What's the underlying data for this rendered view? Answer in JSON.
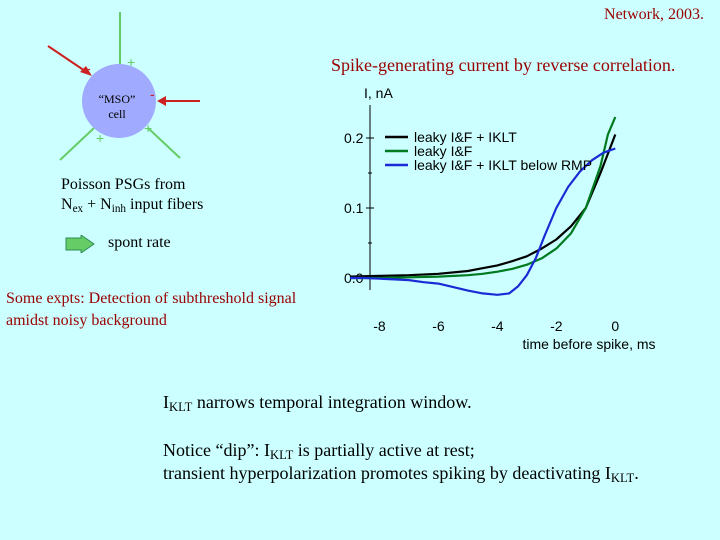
{
  "header": {
    "reference": "Network, 2003.",
    "title": "Spike-generating current by reverse correlation."
  },
  "neuron": {
    "label_line1": "“MSO”",
    "label_line2": "cell",
    "plus_marks": [
      "+",
      "+",
      "+"
    ],
    "minus_marks": [
      "-",
      "-"
    ],
    "colors": {
      "cell": "#a0aaff",
      "excitatory": "#66cc66",
      "inhibitory": "#cc2222"
    }
  },
  "left_text": {
    "poisson_line1": "Poisson PSGs from",
    "nex_main": "N",
    "nex_sub": "ex",
    "plus": " + ",
    "ninh_main": "N",
    "ninh_sub": "inh",
    "input_fibers": " input fibers",
    "spont_rate": "spont rate",
    "expts_line1": "Some expts: Detection of subthreshold signal",
    "expts_line2": "amidst noisy background"
  },
  "notes": {
    "n1_main": "I",
    "n1_sub": "KLT",
    "n1_rest": " narrows temporal integration window.",
    "n2_pre": "Notice “dip”: I",
    "n2_sub": "KLT",
    "n2_rest": " is partially active at rest;",
    "n3_pre": "transient hyperpolarization promotes spiking by deactivating I",
    "n3_sub": "KLT",
    "n3_post": "."
  },
  "chart_data": {
    "type": "line",
    "ylabel": "I, nA",
    "xlabel": "time before spike, ms",
    "xlim": [
      -9,
      0.5
    ],
    "ylim": [
      -0.01,
      0.24
    ],
    "x_ticks": [
      -8,
      -6,
      -4,
      -2,
      0
    ],
    "x_tick_labels": [
      "-8",
      "-6",
      "-4",
      "-2",
      "0"
    ],
    "y_ticks": [
      0.0,
      0.1,
      0.2
    ],
    "y_tick_labels": [
      "0.0",
      "0.1",
      "0.2"
    ],
    "legend_position": "top-right",
    "series": [
      {
        "name": "leaky I&F + IKLT",
        "color": "#000000",
        "x": [
          -9.0,
          -8.0,
          -7.0,
          -6.0,
          -5.0,
          -4.5,
          -4.0,
          -3.5,
          -3.0,
          -2.5,
          -2.0,
          -1.5,
          -1.0,
          -0.5,
          0.0
        ],
        "y": [
          0.002,
          0.003,
          0.004,
          0.006,
          0.01,
          0.014,
          0.018,
          0.024,
          0.031,
          0.042,
          0.055,
          0.074,
          0.1,
          0.15,
          0.205
        ]
      },
      {
        "name": "leaky I&F",
        "color": "#007a1e",
        "x": [
          -9.0,
          -8.0,
          -7.0,
          -6.0,
          -5.0,
          -4.5,
          -4.0,
          -3.5,
          -3.0,
          -2.5,
          -2.0,
          -1.5,
          -1.0,
          -0.5,
          -0.25,
          0.0
        ],
        "y": [
          0.0,
          0.0,
          0.001,
          0.002,
          0.004,
          0.006,
          0.009,
          0.013,
          0.019,
          0.028,
          0.042,
          0.064,
          0.1,
          0.16,
          0.205,
          0.23
        ]
      },
      {
        "name": "leaky I&F + IKLT below RMP",
        "color": "#1a2ad6",
        "x": [
          -9.0,
          -8.5,
          -8.0,
          -7.5,
          -7.0,
          -6.5,
          -6.0,
          -5.5,
          -5.0,
          -4.5,
          -4.0,
          -3.6,
          -3.3,
          -3.0,
          -2.7,
          -2.4,
          -2.0,
          -1.6,
          -1.2,
          -0.8,
          -0.4,
          0.0
        ],
        "y": [
          0.0,
          0.0,
          -0.001,
          -0.002,
          -0.003,
          -0.006,
          -0.008,
          -0.013,
          -0.018,
          -0.022,
          -0.024,
          -0.022,
          -0.012,
          0.004,
          0.028,
          0.06,
          0.1,
          0.13,
          0.152,
          0.168,
          0.179,
          0.185
        ]
      }
    ]
  }
}
